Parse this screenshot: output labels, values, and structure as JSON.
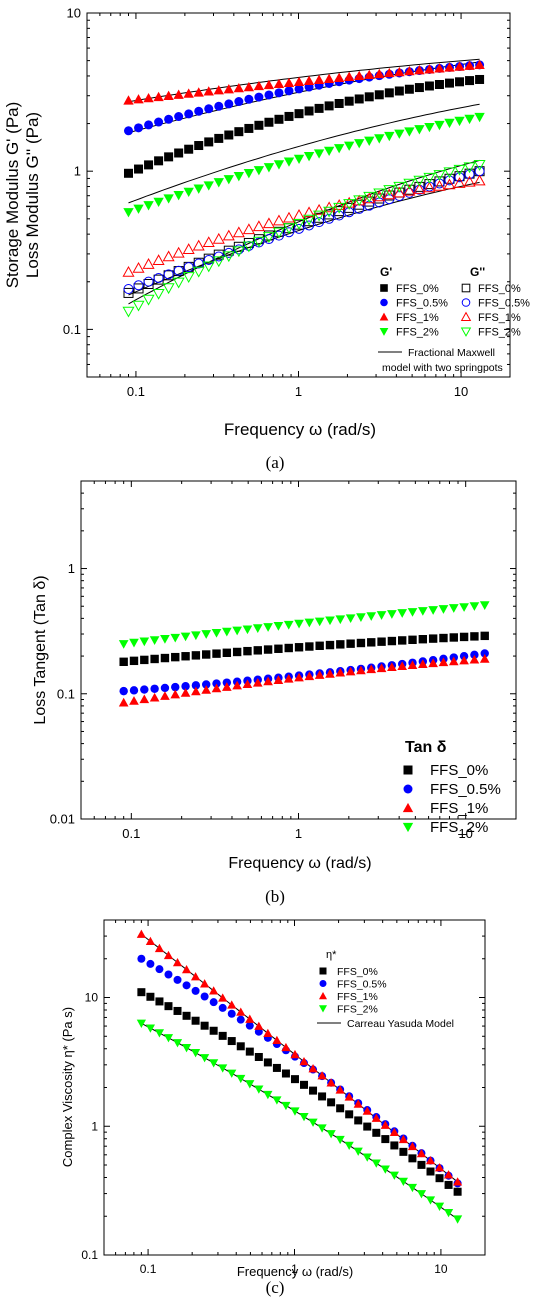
{
  "chart_data": [
    {
      "type": "scatter",
      "panel": "(a)",
      "xlabel": "Frequency ω (rad/s)",
      "ylabel": [
        "Storage Modulus G' (Pa)",
        "Loss Modulus G'' (Pa)"
      ],
      "xscale": "log",
      "yscale": "log",
      "xlim": [
        0.05,
        20
      ],
      "ylim": [
        0.05,
        10
      ],
      "x_ticks": [
        "0.1",
        "1",
        "10"
      ],
      "y_ticks": [
        "0.1",
        "1",
        "10"
      ],
      "legend_headers": [
        "G'",
        "G''"
      ],
      "legend_position": "bottom-right",
      "fit_label": [
        "Fractional Maxwell",
        "model with two springpots"
      ],
      "x_range": [
        0.09,
        13.0
      ],
      "n_points": 36,
      "series": [
        {
          "name": "FFS_0%",
          "modulus": "G'",
          "color": "#000000",
          "marker": "square",
          "filled": true,
          "start": 0.97,
          "end": 3.8,
          "curve": 0.6
        },
        {
          "name": "FFS_0.5%",
          "modulus": "G'",
          "color": "#0000ff",
          "marker": "circle",
          "filled": true,
          "start": 1.8,
          "end": 4.7,
          "curve": 0.6
        },
        {
          "name": "FFS_1%",
          "modulus": "G'",
          "color": "#ff0000",
          "marker": "triangle-up",
          "filled": true,
          "start": 2.8,
          "end": 4.7,
          "curve": 0.15
        },
        {
          "name": "FFS_2%",
          "modulus": "G'",
          "color": "#00ff00",
          "marker": "triangle-down",
          "filled": true,
          "start": 0.55,
          "end": 2.2,
          "curve": 0.3
        },
        {
          "name": "FFS_0%",
          "modulus": "G''",
          "color": "#000000",
          "marker": "square",
          "filled": false,
          "start": 0.17,
          "end": 1.0,
          "curve": 0.3
        },
        {
          "name": "FFS_0.5%",
          "modulus": "G''",
          "color": "#0000ff",
          "marker": "circle",
          "filled": false,
          "start": 0.18,
          "end": 1.0,
          "curve": 0.1
        },
        {
          "name": "FFS_1%",
          "modulus": "G''",
          "color": "#ff0000",
          "marker": "triangle-up",
          "filled": false,
          "start": 0.23,
          "end": 0.87,
          "curve": 0.55
        },
        {
          "name": "FFS_2%",
          "modulus": "G''",
          "color": "#00ff00",
          "marker": "triangle-down",
          "filled": false,
          "start": 0.13,
          "end": 1.1,
          "curve": 0.45
        }
      ],
      "fits": [
        {
          "start": 0.63,
          "end": 2.65
        },
        {
          "start": 0.145,
          "end": 1.17
        },
        {
          "start": 0.165,
          "end": 0.85
        },
        {
          "start": 2.75,
          "end": 5.1
        },
        {
          "start": 1.75,
          "end": 4.9
        }
      ]
    },
    {
      "type": "scatter",
      "panel": "(b)",
      "xlabel": "Frequency ω (rad/s)",
      "ylabel": "Loss Tangent (Tan δ)",
      "xscale": "log",
      "yscale": "log",
      "xlim": [
        0.05,
        20
      ],
      "ylim": [
        0.01,
        5
      ],
      "x_ticks": [
        "0.1",
        "1",
        "10"
      ],
      "y_ticks": [
        "0.01",
        "0.1",
        "1"
      ],
      "legend_title": "Tan δ",
      "legend_position": "bottom-right",
      "x_range": [
        0.09,
        13.0
      ],
      "n_points": 36,
      "series": [
        {
          "name": "FFS_0%",
          "color": "#000000",
          "marker": "square",
          "start": 0.18,
          "end": 0.29,
          "curve": 0.3
        },
        {
          "name": "FFS_0.5%",
          "color": "#0000ff",
          "marker": "circle",
          "start": 0.105,
          "end": 0.21,
          "curve": -0.3
        },
        {
          "name": "FFS_1%",
          "color": "#ff0000",
          "marker": "triangle-up",
          "start": 0.085,
          "end": 0.19,
          "curve": 0.35
        },
        {
          "name": "FFS_2%",
          "color": "#00ff00",
          "marker": "triangle-down",
          "start": 0.25,
          "end": 0.51,
          "curve": 0.15
        }
      ]
    },
    {
      "type": "scatter",
      "panel": "(c)",
      "xlabel": "Frequency ω (rad/s)",
      "ylabel": "Complex Viscosity η* (Pa s)",
      "xscale": "log",
      "yscale": "log",
      "xlim": [
        0.05,
        20
      ],
      "ylim": [
        0.1,
        40
      ],
      "x_ticks": [
        "0.1",
        "1",
        "10"
      ],
      "y_ticks": [
        "0.1",
        "1",
        "10"
      ],
      "legend_title": "η*",
      "legend_position": "top-right",
      "fit_label": "Carreau Yasuda Model",
      "x_range": [
        0.09,
        13.0
      ],
      "n_points": 36,
      "series": [
        {
          "name": "FFS_0%",
          "color": "#000000",
          "marker": "square",
          "start": 11.0,
          "end": 0.31,
          "curve": -0.2
        },
        {
          "name": "FFS_0.5%",
          "color": "#0000ff",
          "marker": "circle",
          "start": 20.0,
          "end": 0.36,
          "curve": -0.2
        },
        {
          "name": "FFS_1%",
          "color": "#ff0000",
          "marker": "triangle-up",
          "start": 31.0,
          "end": 0.37,
          "curve": 0.0
        },
        {
          "name": "FFS_2%",
          "color": "#00ff00",
          "marker": "triangle-down",
          "start": 6.3,
          "end": 0.19,
          "curve": -0.15
        }
      ]
    }
  ]
}
